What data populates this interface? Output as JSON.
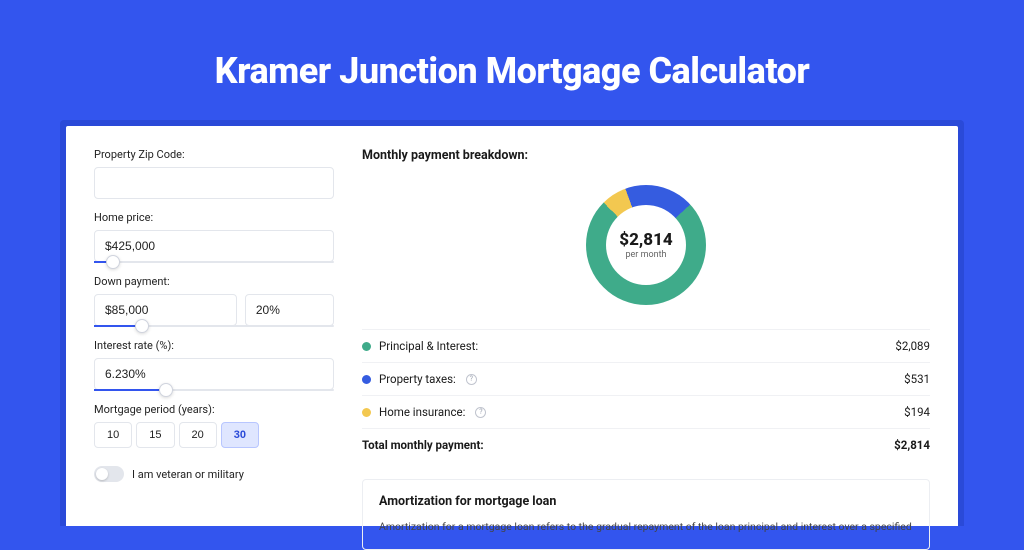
{
  "colors": {
    "page_bg": "#3355ee",
    "card_shadow": "#2a4ad8",
    "principal": "#3fab8a",
    "taxes": "#355ce0",
    "insurance": "#f3c850"
  },
  "hero": {
    "title": "Kramer Junction Mortgage Calculator"
  },
  "form": {
    "zip_label": "Property Zip Code:",
    "zip_value": "",
    "price_label": "Home price:",
    "price_value": "$425,000",
    "price_slider_pct": 8,
    "down_label": "Down payment:",
    "down_amount": "$85,000",
    "down_pct": "20%",
    "down_slider_pct": 20,
    "rate_label": "Interest rate (%):",
    "rate_value": "6.230%",
    "rate_slider_pct": 30,
    "period_label": "Mortgage period (years):",
    "periods": [
      "10",
      "15",
      "20",
      "30"
    ],
    "period_active_index": 3,
    "veteran_label": "I am veteran or military"
  },
  "breakdown": {
    "title": "Monthly payment breakdown:",
    "donut_center_amount": "$2,814",
    "donut_center_sub": "per month",
    "slices": {
      "principal_pct": 74.3,
      "taxes_pct": 18.8,
      "insurance_pct": 6.9
    },
    "items": [
      {
        "label": "Principal & Interest:",
        "value": "$2,089",
        "colorKey": "principal",
        "info": false
      },
      {
        "label": "Property taxes:",
        "value": "$531",
        "colorKey": "taxes",
        "info": true
      },
      {
        "label": "Home insurance:",
        "value": "$194",
        "colorKey": "insurance",
        "info": true
      }
    ],
    "total_label": "Total monthly payment:",
    "total_value": "$2,814"
  },
  "amort": {
    "title": "Amortization for mortgage loan",
    "text": "Amortization for a mortgage loan refers to the gradual repayment of the loan principal and interest over a specified"
  }
}
